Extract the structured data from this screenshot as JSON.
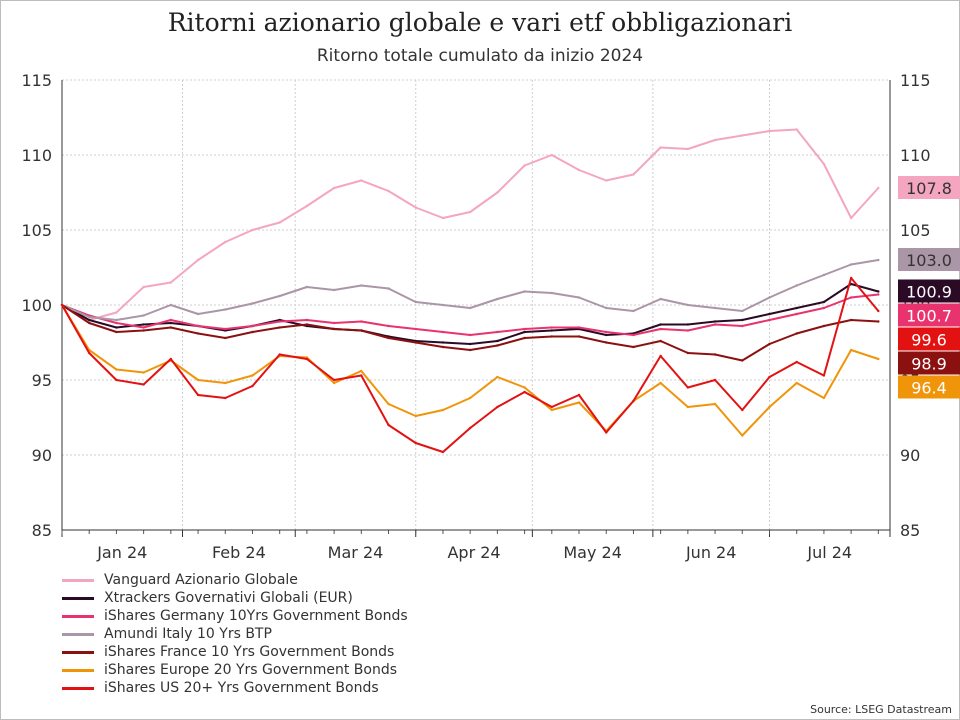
{
  "chart_data": {
    "type": "line",
    "title": "Ritorni azionario globale e vari etf obbligazionari",
    "subtitle": "Ritorno totale cumulato da inizio 2024",
    "source": "Source: LSEG Datastream",
    "ylim": [
      85,
      115
    ],
    "yticks": [
      "85",
      "90",
      "95",
      "100",
      "105",
      "110",
      "115"
    ],
    "xlim": [
      "2024-01-01",
      "2024-07-31"
    ],
    "x_tick_labels": [
      "Jan 24",
      "Feb 24",
      "Mar 24",
      "Apr 24",
      "May 24",
      "Jun 24",
      "Jul 24"
    ],
    "grid": true,
    "legend_position": "bottom-left",
    "x": [
      "2024-01-01",
      "2024-01-08",
      "2024-01-15",
      "2024-01-22",
      "2024-01-29",
      "2024-02-05",
      "2024-02-12",
      "2024-02-19",
      "2024-02-26",
      "2024-03-04",
      "2024-03-11",
      "2024-03-18",
      "2024-03-25",
      "2024-04-01",
      "2024-04-08",
      "2024-04-15",
      "2024-04-22",
      "2024-04-29",
      "2024-05-06",
      "2024-05-13",
      "2024-05-20",
      "2024-05-27",
      "2024-06-03",
      "2024-06-10",
      "2024-06-17",
      "2024-06-24",
      "2024-07-01",
      "2024-07-08",
      "2024-07-15",
      "2024-07-22",
      "2024-07-29"
    ],
    "series": [
      {
        "name": "Vanguard Azionario Globale",
        "color": "#f4a6c0",
        "end_label": "107.8",
        "label_text_color": "#333333",
        "values": [
          100,
          99.0,
          99.5,
          101.2,
          101.5,
          103.0,
          104.2,
          105.0,
          105.5,
          106.6,
          107.8,
          108.3,
          107.6,
          106.5,
          105.8,
          106.2,
          107.5,
          109.3,
          110.0,
          109.0,
          108.3,
          108.7,
          110.5,
          110.4,
          111.0,
          111.3,
          111.6,
          111.7,
          109.4,
          105.8,
          107.8
        ]
      },
      {
        "name": "Xtrackers Governativi Globali (EUR)",
        "color": "#2a0a25",
        "end_label": "100.9",
        "label_text_color": "#ffffff",
        "values": [
          100,
          99.0,
          98.5,
          98.7,
          98.8,
          98.6,
          98.3,
          98.6,
          99.0,
          98.6,
          98.4,
          98.3,
          97.9,
          97.6,
          97.5,
          97.4,
          97.6,
          98.2,
          98.3,
          98.4,
          98.0,
          98.1,
          98.7,
          98.7,
          98.9,
          99.0,
          99.4,
          99.8,
          100.2,
          101.4,
          100.9
        ]
      },
      {
        "name": "iShares Germany 10Yrs Government Bonds",
        "color": "#e8336e",
        "end_label": "100.7",
        "label_text_color": "#ffffff",
        "values": [
          100,
          99.3,
          98.8,
          98.5,
          99.0,
          98.6,
          98.4,
          98.6,
          98.9,
          99.0,
          98.8,
          98.9,
          98.6,
          98.4,
          98.2,
          98.0,
          98.2,
          98.4,
          98.5,
          98.5,
          98.2,
          98.0,
          98.4,
          98.3,
          98.7,
          98.6,
          99.0,
          99.4,
          99.8,
          100.5,
          100.7
        ]
      },
      {
        "name": "Amundi Italy 10 Yrs BTP",
        "color": "#aa96a6",
        "end_label": "103.0",
        "label_text_color": "#333333",
        "values": [
          100,
          99.2,
          99.0,
          99.3,
          100.0,
          99.4,
          99.7,
          100.1,
          100.6,
          101.2,
          101.0,
          101.3,
          101.1,
          100.2,
          100.0,
          99.8,
          100.4,
          100.9,
          100.8,
          100.5,
          99.8,
          99.6,
          100.4,
          100.0,
          99.8,
          99.6,
          100.5,
          101.3,
          102.0,
          102.7,
          103.0
        ]
      },
      {
        "name": "iShares France 10 Yrs Government Bonds",
        "color": "#8b1010",
        "end_label": "98.9",
        "label_text_color": "#ffffff",
        "values": [
          100,
          98.8,
          98.2,
          98.3,
          98.5,
          98.1,
          97.8,
          98.2,
          98.5,
          98.7,
          98.4,
          98.3,
          97.8,
          97.5,
          97.2,
          97.0,
          97.3,
          97.8,
          97.9,
          97.9,
          97.5,
          97.2,
          97.6,
          96.8,
          96.7,
          96.3,
          97.4,
          98.1,
          98.6,
          99.0,
          98.9
        ]
      },
      {
        "name": "iShares Europe 20 Yrs Government Bonds",
        "color": "#f0950a",
        "end_label": "96.4",
        "label_text_color": "#ffffff",
        "values": [
          100,
          97.0,
          95.7,
          95.5,
          96.3,
          95.0,
          94.8,
          95.3,
          96.6,
          96.5,
          94.8,
          95.6,
          93.4,
          92.6,
          93.0,
          93.8,
          95.2,
          94.5,
          93.0,
          93.5,
          91.6,
          93.6,
          94.8,
          93.2,
          93.4,
          91.3,
          93.2,
          94.8,
          93.8,
          97.0,
          96.4
        ]
      },
      {
        "name": "iShares US 20+ Yrs Government Bonds",
        "color": "#e31212",
        "end_label": "99.6",
        "label_text_color": "#ffffff",
        "values": [
          100,
          96.8,
          95.0,
          94.7,
          96.4,
          94.0,
          93.8,
          94.6,
          96.7,
          96.4,
          95.0,
          95.3,
          92.0,
          90.8,
          90.2,
          91.8,
          93.2,
          94.2,
          93.2,
          94.0,
          91.5,
          93.6,
          96.6,
          94.5,
          95.0,
          93.0,
          95.2,
          96.2,
          95.3,
          101.8,
          99.6
        ]
      }
    ]
  }
}
